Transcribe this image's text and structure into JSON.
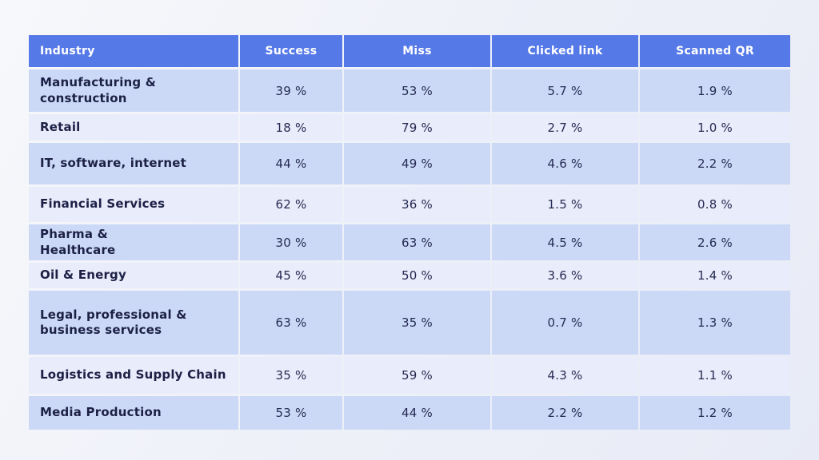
{
  "colors": {
    "header_bg": "#5679e8",
    "row_dark_bg": "#cbd9f7",
    "row_light_bg": "#e9ecfa",
    "header_text": "#ffffff",
    "body_text": "#1c2045",
    "page_bg_gradient": [
      "#f7f8fb",
      "#e8ebf6"
    ]
  },
  "table": {
    "columns": [
      "Industry",
      "Success",
      "Miss",
      "Clicked link",
      "Scanned QR"
    ],
    "rows": [
      {
        "industry": "Manufacturing &\nconstruction",
        "success": "39 %",
        "miss": "53 %",
        "clicked_link": "5.7 %",
        "scanned_qr": "1.9 %"
      },
      {
        "industry": "Retail",
        "success": "18 %",
        "miss": "79 %",
        "clicked_link": "2.7 %",
        "scanned_qr": "1.0 %"
      },
      {
        "industry": "IT, software, internet",
        "success": "44 %",
        "miss": "49 %",
        "clicked_link": "4.6 %",
        "scanned_qr": "2.2 %"
      },
      {
        "industry": "Financial Services",
        "success": "62 %",
        "miss": "36 %",
        "clicked_link": "1.5 %",
        "scanned_qr": "0.8 %"
      },
      {
        "industry": "Pharma &\nHealthcare",
        "success": "30 %",
        "miss": "63 %",
        "clicked_link": "4.5 %",
        "scanned_qr": "2.6 %"
      },
      {
        "industry": "Oil & Energy",
        "success": "45 %",
        "miss": "50 %",
        "clicked_link": "3.6 %",
        "scanned_qr": "1.4 %"
      },
      {
        "industry": "Legal, professional &\nbusiness services",
        "success": "63 %",
        "miss": "35 %",
        "clicked_link": "0.7 %",
        "scanned_qr": "1.3 %"
      },
      {
        "industry": "Logistics and Supply Chain",
        "success": "35 %",
        "miss": "59 %",
        "clicked_link": "4.3 %",
        "scanned_qr": "1.1 %"
      },
      {
        "industry": "Media Production",
        "success": "53 %",
        "miss": "44 %",
        "clicked_link": "2.2 %",
        "scanned_qr": "1.2 %"
      }
    ]
  },
  "chart_data": {
    "type": "table",
    "title": "",
    "categories": [
      "Manufacturing & construction",
      "Retail",
      "IT, software, internet",
      "Financial Services",
      "Pharma & Healthcare",
      "Oil & Energy",
      "Legal, professional & business services",
      "Logistics and Supply Chain",
      "Media Production"
    ],
    "series": [
      {
        "name": "Success",
        "unit": "%",
        "values": [
          39,
          18,
          44,
          62,
          30,
          45,
          63,
          35,
          53
        ]
      },
      {
        "name": "Miss",
        "unit": "%",
        "values": [
          53,
          79,
          49,
          36,
          63,
          50,
          35,
          59,
          44
        ]
      },
      {
        "name": "Clicked link",
        "unit": "%",
        "values": [
          5.7,
          2.7,
          4.6,
          1.5,
          4.5,
          3.6,
          0.7,
          4.3,
          2.2
        ]
      },
      {
        "name": "Scanned QR",
        "unit": "%",
        "values": [
          1.9,
          1.0,
          2.2,
          0.8,
          2.6,
          1.4,
          1.3,
          1.1,
          1.2
        ]
      }
    ]
  }
}
